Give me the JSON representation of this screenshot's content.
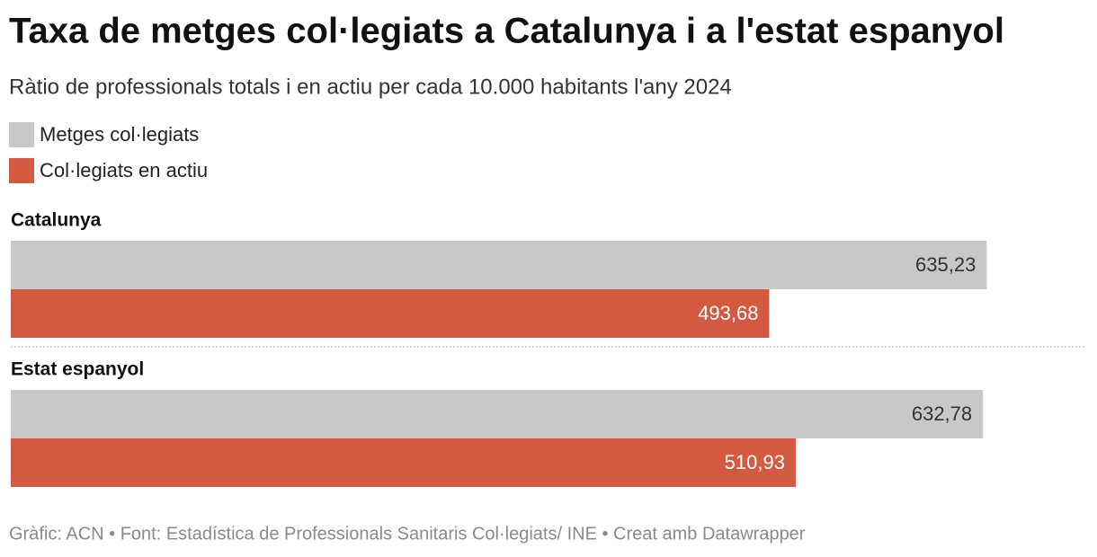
{
  "chart_data": {
    "type": "grouped-bar",
    "title": "Taxa de metges col·legiats a Catalunya i a l'estat espanyol",
    "subtitle": "Ràtio de professionals totals i en actiu per cada 10.000 habitants l'any 2024",
    "categories": [
      "Catalunya",
      "Estat espanyol"
    ],
    "series": [
      {
        "name": "Metges col·legiats",
        "color": "#c8c8c8",
        "values": [
          635.23,
          632.78
        ],
        "value_labels": [
          "635,23",
          "632,78"
        ]
      },
      {
        "name": "Col·legiats en actiu",
        "color": "#d35a40",
        "values": [
          493.68,
          510.93
        ],
        "value_labels": [
          "493,68",
          "510,93"
        ]
      }
    ],
    "xlim": [
      0,
      700
    ],
    "footer": "Gràfic: ACN • Font: Estadística de Professionals Sanitaris Col·legiats/ INE • Creat amb Datawrapper"
  }
}
